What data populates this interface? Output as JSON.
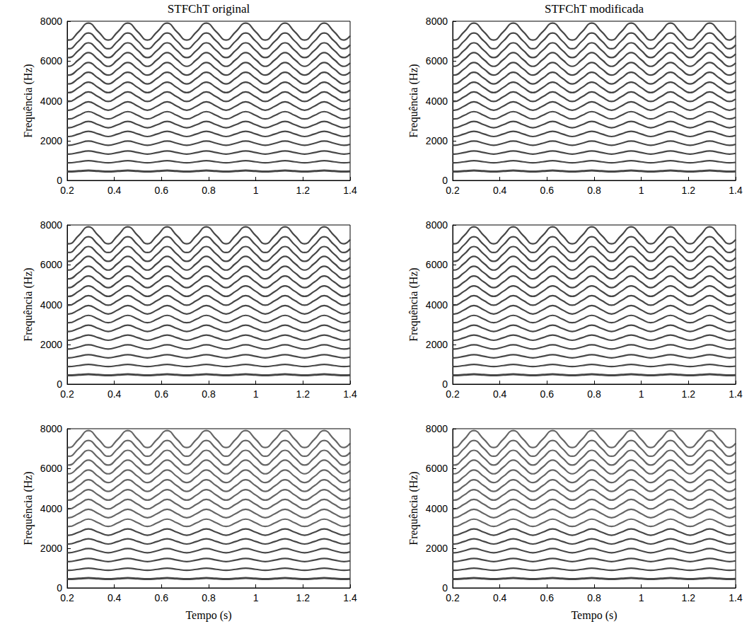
{
  "chart_data": {
    "type": "line",
    "titles": [
      "STFChT original",
      "STFChT modificada"
    ],
    "xlabel": "Tempo (s)",
    "ylabel": "Frequência (Hz)",
    "xlim": [
      0.2,
      1.4
    ],
    "xticks": [
      0.2,
      0.4,
      0.6,
      0.8,
      1,
      1.2,
      1.4
    ],
    "ylim": [
      0,
      8000
    ],
    "yticks": [
      0,
      2000,
      4000,
      6000,
      8000
    ],
    "grid": false,
    "color": "#333333",
    "x": [
      0.2,
      0.207,
      0.249,
      0.29,
      0.332,
      0.374,
      0.415,
      0.457,
      0.499,
      0.54,
      0.582,
      0.624,
      0.665,
      0.707,
      0.749,
      0.79,
      0.832,
      0.874,
      0.915,
      0.957,
      0.999,
      1.04,
      1.082,
      1.124,
      1.165,
      1.207,
      1.249,
      1.29,
      1.332,
      1.374,
      1.4
    ],
    "series": [
      {
        "values": [
          442,
          441,
          467,
          494,
          467,
          441,
          467,
          494,
          467,
          441,
          467,
          494,
          467,
          441,
          467,
          494,
          467,
          441,
          467,
          494,
          467,
          441,
          467,
          494,
          467,
          441,
          467,
          494,
          467,
          441,
          454
        ]
      },
      {
        "values": [
          884,
          882,
          934,
          988,
          934,
          882,
          934,
          988,
          934,
          882,
          934,
          988,
          934,
          882,
          934,
          988,
          934,
          882,
          934,
          988,
          934,
          882,
          934,
          988,
          934,
          882,
          934,
          988,
          934,
          882,
          908
        ]
      },
      {
        "values": [
          1326,
          1323,
          1401,
          1482,
          1401,
          1323,
          1401,
          1482,
          1401,
          1323,
          1401,
          1482,
          1401,
          1323,
          1401,
          1482,
          1401,
          1323,
          1401,
          1482,
          1401,
          1323,
          1401,
          1482,
          1401,
          1323,
          1401,
          1482,
          1401,
          1323,
          1362
        ]
      },
      {
        "values": [
          1768,
          1764,
          1868,
          1976,
          1868,
          1764,
          1868,
          1976,
          1868,
          1764,
          1868,
          1976,
          1868,
          1764,
          1868,
          1976,
          1868,
          1764,
          1868,
          1976,
          1868,
          1764,
          1868,
          1976,
          1868,
          1764,
          1868,
          1976,
          1868,
          1764,
          1816
        ]
      },
      {
        "values": [
          2210,
          2205,
          2335,
          2470,
          2335,
          2205,
          2335,
          2470,
          2335,
          2205,
          2335,
          2470,
          2335,
          2205,
          2335,
          2470,
          2335,
          2205,
          2335,
          2470,
          2335,
          2205,
          2335,
          2470,
          2335,
          2205,
          2335,
          2470,
          2335,
          2205,
          2270
        ]
      },
      {
        "values": [
          2652,
          2646,
          2802,
          2964,
          2802,
          2646,
          2802,
          2964,
          2802,
          2646,
          2802,
          2964,
          2802,
          2646,
          2802,
          2964,
          2802,
          2646,
          2802,
          2964,
          2802,
          2646,
          2802,
          2964,
          2802,
          2646,
          2802,
          2964,
          2802,
          2646,
          2724
        ]
      },
      {
        "values": [
          3094,
          3087,
          3269,
          3458,
          3269,
          3087,
          3269,
          3458,
          3269,
          3087,
          3269,
          3458,
          3269,
          3087,
          3269,
          3458,
          3269,
          3087,
          3269,
          3458,
          3269,
          3087,
          3269,
          3458,
          3269,
          3087,
          3269,
          3458,
          3269,
          3087,
          3178
        ]
      },
      {
        "values": [
          3536,
          3528,
          3736,
          3952,
          3736,
          3528,
          3736,
          3952,
          3736,
          3528,
          3736,
          3952,
          3736,
          3528,
          3736,
          3952,
          3736,
          3528,
          3736,
          3952,
          3736,
          3528,
          3736,
          3952,
          3736,
          3528,
          3736,
          3952,
          3736,
          3528,
          3632
        ]
      },
      {
        "values": [
          3978,
          3969,
          4203,
          4446,
          4203,
          3969,
          4203,
          4446,
          4203,
          3969,
          4203,
          4446,
          4203,
          3969,
          4203,
          4446,
          4203,
          3969,
          4203,
          4446,
          4203,
          3969,
          4203,
          4446,
          4203,
          3969,
          4203,
          4446,
          4203,
          3969,
          4086
        ]
      },
      {
        "values": [
          4420,
          4410,
          4670,
          4940,
          4670,
          4410,
          4670,
          4940,
          4670,
          4410,
          4670,
          4940,
          4670,
          4410,
          4670,
          4940,
          4670,
          4410,
          4670,
          4940,
          4670,
          4410,
          4670,
          4940,
          4670,
          4410,
          4670,
          4940,
          4670,
          4410,
          4540
        ]
      },
      {
        "values": [
          4862,
          4851,
          5137,
          5434,
          5137,
          4851,
          5137,
          5434,
          5137,
          4851,
          5137,
          5434,
          5137,
          4851,
          5137,
          5434,
          5137,
          4851,
          5137,
          5434,
          5137,
          4851,
          5137,
          5434,
          5137,
          4851,
          5137,
          5434,
          5137,
          4851,
          4994
        ]
      },
      {
        "values": [
          5304,
          5292,
          5604,
          5928,
          5604,
          5292,
          5604,
          5928,
          5604,
          5292,
          5604,
          5928,
          5604,
          5292,
          5604,
          5928,
          5604,
          5292,
          5604,
          5928,
          5604,
          5292,
          5604,
          5928,
          5604,
          5292,
          5604,
          5928,
          5604,
          5292,
          5448
        ]
      },
      {
        "values": [
          5746,
          5733,
          6071,
          6422,
          6071,
          5733,
          6071,
          6422,
          6071,
          5733,
          6071,
          6422,
          6071,
          5733,
          6071,
          6422,
          6071,
          5733,
          6071,
          6422,
          6071,
          5733,
          6071,
          6422,
          6071,
          5733,
          6071,
          6422,
          6071,
          5733,
          5902
        ]
      },
      {
        "values": [
          6188,
          6174,
          6538,
          6916,
          6538,
          6174,
          6538,
          6916,
          6538,
          6174,
          6538,
          6916,
          6538,
          6174,
          6538,
          6916,
          6538,
          6174,
          6538,
          6916,
          6538,
          6174,
          6538,
          6916,
          6538,
          6174,
          6538,
          6916,
          6538,
          6174,
          6356
        ]
      },
      {
        "values": [
          6630,
          6615,
          7005,
          7410,
          7005,
          6615,
          7005,
          7410,
          7005,
          6615,
          7005,
          7410,
          7005,
          6615,
          7005,
          7410,
          7005,
          6615,
          7005,
          7410,
          7005,
          6615,
          7005,
          7410,
          7005,
          6615,
          7005,
          7410,
          7005,
          6615,
          6810
        ]
      },
      {
        "values": [
          7072,
          7056,
          7472,
          7904,
          7472,
          7056,
          7472,
          7904,
          7472,
          7056,
          7472,
          7904,
          7472,
          7056,
          7472,
          7904,
          7472,
          7056,
          7472,
          7904,
          7472,
          7056,
          7472,
          7904,
          7472,
          7056,
          7472,
          7904,
          7472,
          7056,
          7264
        ]
      }
    ]
  }
}
